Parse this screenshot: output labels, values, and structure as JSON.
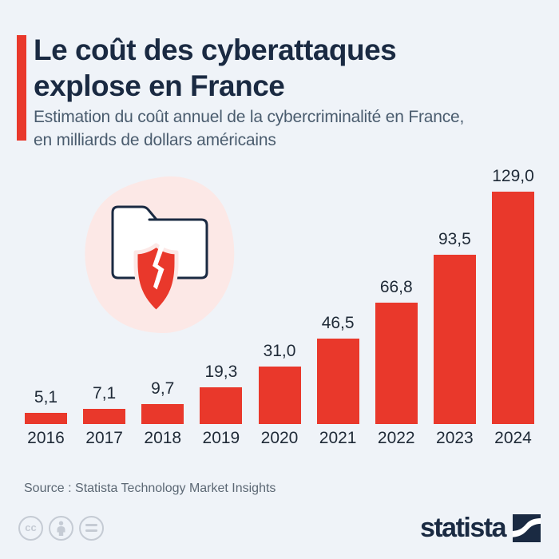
{
  "header": {
    "title": "Le coût des cyberattaques explose en France",
    "title_lines": [
      "Le coût des cyberattaques",
      "explose en France"
    ],
    "subtitle": "Estimation du coût annuel de la cybercriminalité en France, en milliards de dollars américains",
    "subtitle_lines": [
      "Estimation du coût annuel de la cybercriminalité en France,",
      "en milliards de dollars américains"
    ]
  },
  "chart_data": {
    "type": "bar",
    "title": "Le coût des cyberattaques explose en France",
    "subtitle": "Estimation du coût annuel de la cybercriminalité en France, en milliards de dollars américains",
    "categories": [
      "2016",
      "2017",
      "2018",
      "2019",
      "2020",
      "2021",
      "2022",
      "2023",
      "2024"
    ],
    "values": [
      5.1,
      7.1,
      9.7,
      19.3,
      31.0,
      46.5,
      66.8,
      93.5,
      129.0
    ],
    "value_labels": [
      "5,1",
      "7,1",
      "9,7",
      "19,3",
      "31,0",
      "46,5",
      "66,8",
      "93,5",
      "129,0"
    ],
    "xlabel": "",
    "ylabel": "en milliards de dollars américains",
    "ylim": [
      0,
      129
    ],
    "grid": false,
    "legend": false,
    "bar_color": "#e9382b",
    "label_position": "above-bars"
  },
  "illustration": {
    "description": "broken-shield-folder",
    "blob_color": "#fce8e6",
    "shield_color": "#e9382b",
    "outline_color": "#1a2a42"
  },
  "footer": {
    "source": "Source : Statista Technology Market Insights",
    "license_icons": [
      "cc",
      "attribution",
      "no-derivatives"
    ],
    "brand": "statista"
  },
  "colors": {
    "background": "#eff3f8",
    "accent_red": "#e9382b",
    "title_navy": "#1a2a42",
    "subtitle_gray": "#4a5c6e",
    "label_dark": "#1f2a37",
    "source_gray": "#5c6874",
    "badge_gray": "#c5cbd4"
  }
}
